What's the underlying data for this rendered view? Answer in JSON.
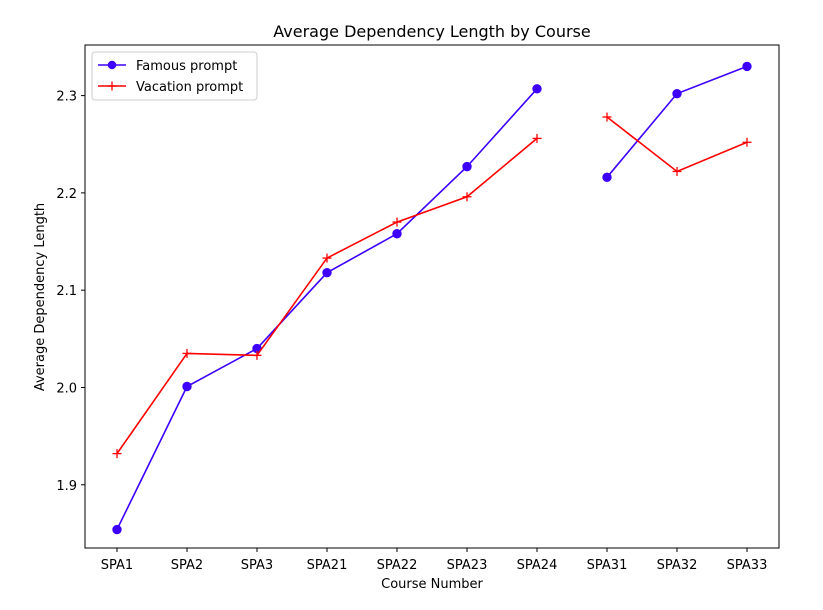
{
  "chart_data": {
    "type": "line",
    "title": "Average Dependency Length by Course",
    "xlabel": "Course Number",
    "ylabel": "Average Dependency Length",
    "categories": [
      "SPA1",
      "SPA2",
      "SPA3",
      "SPA21",
      "SPA22",
      "SPA23",
      "SPA24",
      "SPA31",
      "SPA32",
      "SPA33"
    ],
    "ylim": [
      1.835,
      2.352
    ],
    "yticks": [
      "1.9",
      "2.0",
      "2.1",
      "2.2",
      "2.3"
    ],
    "ytick_values": [
      1.9,
      2.0,
      2.1,
      2.2,
      2.3
    ],
    "grid": false,
    "legend_position": "top-left",
    "series": [
      {
        "name": "Famous prompt",
        "color": "#3d00ff",
        "marker": "circle",
        "values": [
          1.854,
          2.001,
          2.04,
          2.118,
          2.158,
          2.227,
          2.307,
          2.216,
          2.302,
          2.33
        ],
        "breaks_after": [
          6
        ]
      },
      {
        "name": "Vacation prompt",
        "color": "#ff0000",
        "marker": "plus",
        "values": [
          1.932,
          2.035,
          2.033,
          2.133,
          2.17,
          2.196,
          2.256,
          2.278,
          2.222,
          2.252
        ],
        "breaks_after": [
          6
        ]
      }
    ]
  }
}
